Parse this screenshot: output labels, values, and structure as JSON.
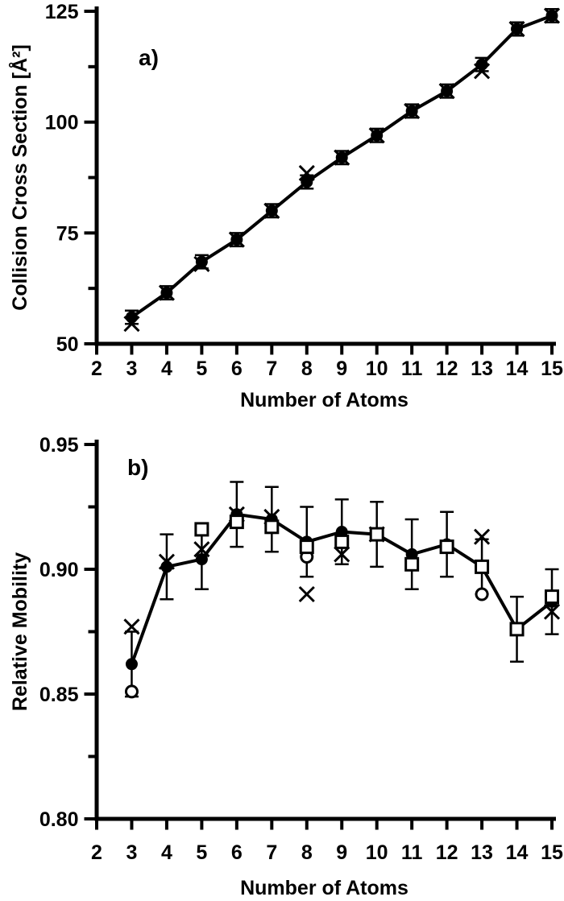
{
  "page": {
    "background": "#ffffff",
    "foreground": "#000000"
  },
  "chart_data": [
    {
      "type": "line",
      "panel_id": "a",
      "panel_label": "a)",
      "xlabel": "Number of Atoms",
      "ylabel": "Collision Cross Section [Å²]",
      "xlim": [
        2,
        15
      ],
      "ylim": [
        50,
        125
      ],
      "grid": false,
      "legend": "none",
      "xticks": [
        2,
        3,
        4,
        5,
        6,
        7,
        8,
        9,
        10,
        11,
        12,
        13,
        14,
        15
      ],
      "xtick_labels": [
        "2",
        "3",
        "4",
        "5",
        "6",
        "7",
        "8",
        "9",
        "10",
        "11",
        "12",
        "13",
        "14",
        "15"
      ],
      "yticks_major": [
        50,
        75,
        100,
        125
      ],
      "ytick_labels": [
        "50",
        "75",
        "100",
        "125"
      ],
      "yticks_minor": [
        62.5,
        87.5,
        112.5
      ],
      "series": [
        {
          "name": "ccs-cross-series",
          "marker": "cross",
          "line": false,
          "points": [
            [
              3,
              54.5
            ],
            [
              4,
              61.5
            ],
            [
              5,
              68
            ],
            [
              6,
              73.5
            ],
            [
              7,
              80
            ],
            [
              8,
              88.5
            ],
            [
              9,
              92
            ],
            [
              10,
              97
            ],
            [
              11,
              102.5
            ],
            [
              12,
              107
            ],
            [
              13,
              111.5
            ],
            [
              14,
              121
            ],
            [
              15,
              124
            ]
          ]
        },
        {
          "name": "ccs-filled-circle-series",
          "marker": "filled-circle",
          "line": true,
          "points": [
            [
              3,
              56
            ],
            [
              4,
              61.5
            ],
            [
              5,
              68.5
            ],
            [
              6,
              73.5
            ],
            [
              7,
              80
            ],
            [
              8,
              86.5
            ],
            [
              9,
              92
            ],
            [
              10,
              97
            ],
            [
              11,
              102.5
            ],
            [
              12,
              107
            ],
            [
              13,
              113
            ],
            [
              14,
              121
            ],
            [
              15,
              124
            ]
          ],
          "error": [
            1.5,
            1.5,
            1.5,
            1.5,
            1.5,
            1.5,
            1.5,
            1.5,
            1.5,
            1.5,
            1.5,
            1.5,
            1.5
          ]
        }
      ]
    },
    {
      "type": "line",
      "panel_id": "b",
      "panel_label": "b)",
      "xlabel": "Number of Atoms",
      "ylabel": "Relative Mobility",
      "xlim": [
        2,
        15
      ],
      "ylim": [
        0.8,
        0.95
      ],
      "grid": false,
      "legend": "none",
      "xticks": [
        2,
        3,
        4,
        5,
        6,
        7,
        8,
        9,
        10,
        11,
        12,
        13,
        14,
        15
      ],
      "xtick_labels": [
        "2",
        "3",
        "4",
        "5",
        "6",
        "7",
        "8",
        "9",
        "10",
        "11",
        "12",
        "13",
        "14",
        "15"
      ],
      "yticks_major": [
        0.8,
        0.85,
        0.9,
        0.95
      ],
      "ytick_labels": [
        "0.80",
        "0.85",
        "0.90",
        "0.95"
      ],
      "yticks_minor": [
        0.825,
        0.875,
        0.925
      ],
      "series": [
        {
          "name": "mobility-cross-series",
          "marker": "cross",
          "line": false,
          "points": [
            [
              3,
              0.877
            ],
            [
              4,
              0.903
            ],
            [
              5,
              0.908
            ],
            [
              6,
              0.922
            ],
            [
              7,
              0.921
            ],
            [
              8,
              0.89
            ],
            [
              9,
              0.906
            ],
            [
              10,
              0.914
            ],
            [
              13,
              0.913
            ],
            [
              15,
              0.883
            ]
          ]
        },
        {
          "name": "mobility-open-circle-series",
          "marker": "open-circle",
          "line": false,
          "points": [
            [
              3,
              0.851
            ],
            [
              8,
              0.905
            ],
            [
              13,
              0.89
            ]
          ]
        },
        {
          "name": "mobility-filled-circle-series",
          "marker": "filled-circle",
          "line": true,
          "points": [
            [
              3,
              0.862
            ],
            [
              4,
              0.901
            ],
            [
              5,
              0.904
            ],
            [
              6,
              0.922
            ],
            [
              7,
              0.92
            ],
            [
              8,
              0.911
            ],
            [
              9,
              0.915
            ],
            [
              10,
              0.914
            ],
            [
              11,
              0.906
            ],
            [
              12,
              0.91
            ],
            [
              13,
              0.901
            ],
            [
              14,
              0.876
            ],
            [
              15,
              0.887
            ]
          ],
          "error": [
            0.013,
            0.013,
            0.012,
            0.013,
            0.013,
            0.014,
            0.013,
            0.013,
            0.014,
            0.013,
            0.011,
            0.013,
            0.013
          ]
        },
        {
          "name": "mobility-open-square-series",
          "marker": "open-square",
          "line": false,
          "points": [
            [
              5,
              0.916
            ],
            [
              6,
              0.919
            ],
            [
              7,
              0.917
            ],
            [
              8,
              0.909
            ],
            [
              9,
              0.911
            ],
            [
              10,
              0.914
            ],
            [
              11,
              0.902
            ],
            [
              12,
              0.909
            ],
            [
              13,
              0.901
            ],
            [
              14,
              0.876
            ],
            [
              15,
              0.889
            ]
          ]
        }
      ]
    }
  ]
}
